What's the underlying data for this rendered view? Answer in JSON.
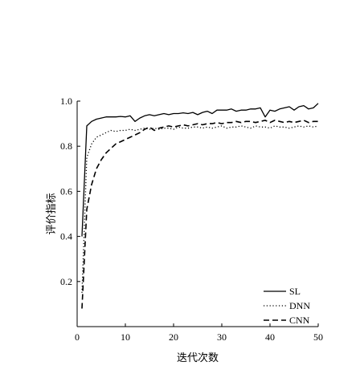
{
  "chart_data": {
    "type": "line",
    "xlabel": "迭代次数",
    "ylabel": "评价指标",
    "xlim": [
      0,
      50
    ],
    "ylim": [
      0,
      1.0
    ],
    "xticks": [
      "0",
      "10",
      "20",
      "30",
      "40",
      "50"
    ],
    "yticks": [
      "0.2",
      "0.4",
      "0.6",
      "0.8",
      "1.0"
    ],
    "grid": false,
    "legend_position": "bottom-right",
    "series": [
      {
        "name": "SL",
        "style": "solid",
        "x": [
          1,
          2,
          3,
          4,
          5,
          6,
          7,
          8,
          9,
          10,
          11,
          12,
          13,
          14,
          15,
          16,
          17,
          18,
          19,
          20,
          21,
          22,
          23,
          24,
          25,
          26,
          27,
          28,
          29,
          30,
          31,
          32,
          33,
          34,
          35,
          36,
          37,
          38,
          39,
          40,
          41,
          42,
          43,
          44,
          45,
          46,
          47,
          48,
          49,
          50
        ],
        "values": [
          0.4,
          0.89,
          0.91,
          0.92,
          0.925,
          0.93,
          0.93,
          0.93,
          0.932,
          0.93,
          0.935,
          0.91,
          0.925,
          0.935,
          0.94,
          0.935,
          0.94,
          0.945,
          0.94,
          0.945,
          0.945,
          0.948,
          0.945,
          0.95,
          0.94,
          0.95,
          0.955,
          0.945,
          0.96,
          0.96,
          0.96,
          0.965,
          0.955,
          0.96,
          0.96,
          0.965,
          0.965,
          0.97,
          0.93,
          0.96,
          0.955,
          0.965,
          0.97,
          0.975,
          0.96,
          0.975,
          0.98,
          0.965,
          0.97,
          0.99
        ]
      },
      {
        "name": "DNN",
        "style": "dotted",
        "x": [
          1,
          2,
          3,
          4,
          5,
          6,
          7,
          8,
          9,
          10,
          11,
          12,
          13,
          14,
          15,
          16,
          17,
          18,
          19,
          20,
          21,
          22,
          23,
          24,
          25,
          26,
          27,
          28,
          29,
          30,
          31,
          32,
          33,
          34,
          35,
          36,
          37,
          38,
          39,
          40,
          41,
          42,
          43,
          44,
          45,
          46,
          47,
          48,
          49,
          50
        ],
        "values": [
          0.15,
          0.75,
          0.81,
          0.84,
          0.85,
          0.86,
          0.87,
          0.865,
          0.87,
          0.87,
          0.875,
          0.87,
          0.875,
          0.88,
          0.875,
          0.88,
          0.875,
          0.88,
          0.88,
          0.875,
          0.885,
          0.88,
          0.88,
          0.885,
          0.885,
          0.88,
          0.885,
          0.88,
          0.885,
          0.89,
          0.88,
          0.885,
          0.885,
          0.89,
          0.885,
          0.88,
          0.89,
          0.885,
          0.885,
          0.88,
          0.89,
          0.885,
          0.885,
          0.88,
          0.885,
          0.89,
          0.885,
          0.89,
          0.885,
          0.89
        ]
      },
      {
        "name": "CNN",
        "style": "dashed",
        "x": [
          1,
          2,
          3,
          4,
          5,
          6,
          7,
          8,
          9,
          10,
          11,
          12,
          13,
          14,
          15,
          16,
          17,
          18,
          19,
          20,
          21,
          22,
          23,
          24,
          25,
          26,
          27,
          28,
          29,
          30,
          31,
          32,
          33,
          34,
          35,
          36,
          37,
          38,
          39,
          40,
          41,
          42,
          43,
          44,
          45,
          46,
          47,
          48,
          49,
          50
        ],
        "values": [
          0.08,
          0.52,
          0.63,
          0.7,
          0.74,
          0.77,
          0.79,
          0.81,
          0.82,
          0.83,
          0.84,
          0.85,
          0.86,
          0.875,
          0.885,
          0.87,
          0.88,
          0.885,
          0.89,
          0.885,
          0.89,
          0.895,
          0.89,
          0.895,
          0.9,
          0.895,
          0.9,
          0.9,
          0.905,
          0.9,
          0.905,
          0.905,
          0.91,
          0.905,
          0.91,
          0.91,
          0.905,
          0.91,
          0.915,
          0.905,
          0.915,
          0.91,
          0.905,
          0.91,
          0.905,
          0.91,
          0.915,
          0.905,
          0.91,
          0.91
        ]
      }
    ]
  }
}
